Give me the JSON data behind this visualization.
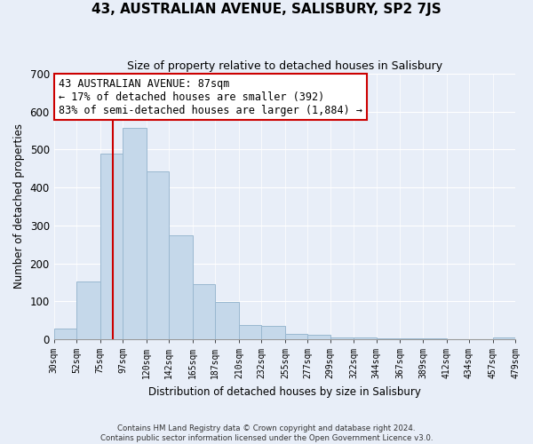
{
  "title": "43, AUSTRALIAN AVENUE, SALISBURY, SP2 7JS",
  "subtitle": "Size of property relative to detached houses in Salisbury",
  "xlabel": "Distribution of detached houses by size in Salisbury",
  "ylabel": "Number of detached properties",
  "bar_color": "#c5d8ea",
  "bar_edge_color": "#9ab8d0",
  "vline_color": "#cc0000",
  "vline_x": 87,
  "bin_edges": [
    30,
    52,
    75,
    97,
    120,
    142,
    165,
    187,
    210,
    232,
    255,
    277,
    299,
    322,
    344,
    367,
    389,
    412,
    434,
    457,
    479
  ],
  "bin_labels": [
    "30sqm",
    "52sqm",
    "75sqm",
    "97sqm",
    "120sqm",
    "142sqm",
    "165sqm",
    "187sqm",
    "210sqm",
    "232sqm",
    "255sqm",
    "277sqm",
    "299sqm",
    "322sqm",
    "344sqm",
    "367sqm",
    "389sqm",
    "412sqm",
    "434sqm",
    "457sqm",
    "479sqm"
  ],
  "bar_heights": [
    27,
    153,
    490,
    558,
    443,
    274,
    146,
    97,
    37,
    36,
    14,
    12,
    5,
    4,
    2,
    1,
    1,
    0,
    0,
    5
  ],
  "ylim": [
    0,
    700
  ],
  "yticks": [
    0,
    100,
    200,
    300,
    400,
    500,
    600,
    700
  ],
  "annotation_title": "43 AUSTRALIAN AVENUE: 87sqm",
  "annotation_line1": "← 17% of detached houses are smaller (392)",
  "annotation_line2": "83% of semi-detached houses are larger (1,884) →",
  "annotation_box_color": "#ffffff",
  "annotation_box_edge": "#cc0000",
  "footnote1": "Contains HM Land Registry data © Crown copyright and database right 2024.",
  "footnote2": "Contains public sector information licensed under the Open Government Licence v3.0.",
  "bg_color": "#e8eef8",
  "plot_bg_color": "#e8eef8",
  "grid_color": "#ffffff"
}
